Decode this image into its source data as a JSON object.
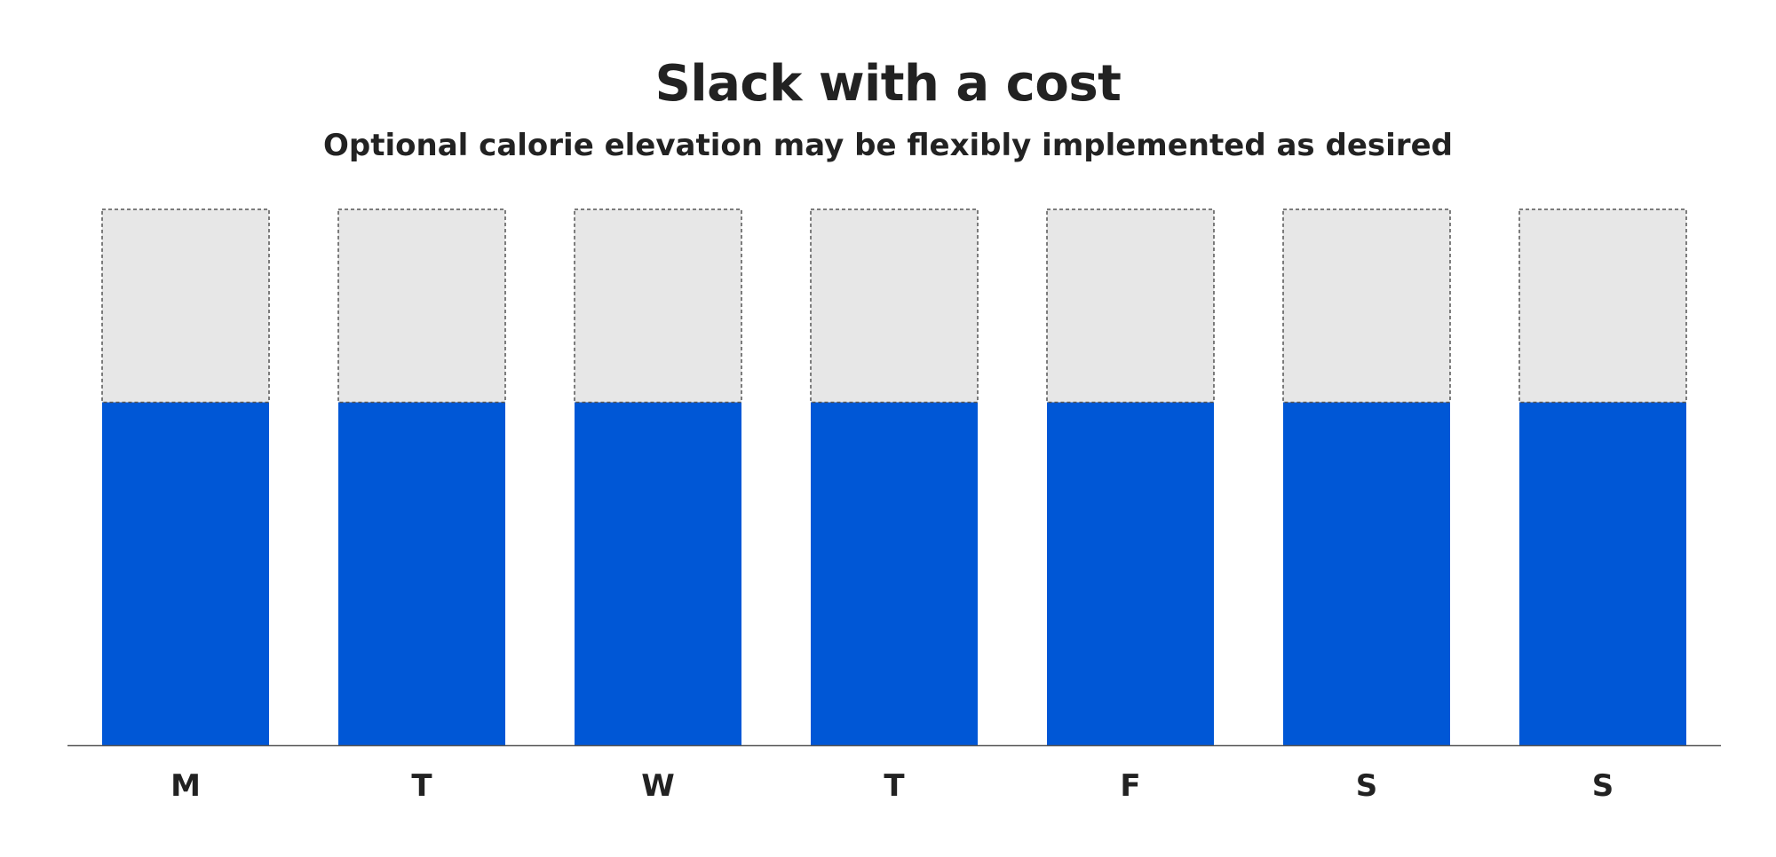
{
  "title": "Slack with a cost",
  "subtitle": "Optional calorie elevation may be flexibly implemented as desired",
  "colors": {
    "base": "#0057d6",
    "optional": "#e7e7e7",
    "optional_border": "#555555",
    "axis": "#555555",
    "text": "#222222"
  },
  "chart_data": {
    "type": "bar",
    "stacked": true,
    "categories": [
      "M",
      "T",
      "W",
      "T",
      "F",
      "S",
      "S"
    ],
    "series": [
      {
        "values": [
          64,
          64,
          64,
          64,
          64,
          64,
          64
        ],
        "style": "solid"
      },
      {
        "values": [
          36,
          36,
          36,
          36,
          36,
          36,
          36
        ],
        "style": "dashed-outline"
      }
    ],
    "ylim": [
      0,
      100
    ],
    "grid": false,
    "legend": "none",
    "xlabel": "",
    "ylabel": ""
  }
}
